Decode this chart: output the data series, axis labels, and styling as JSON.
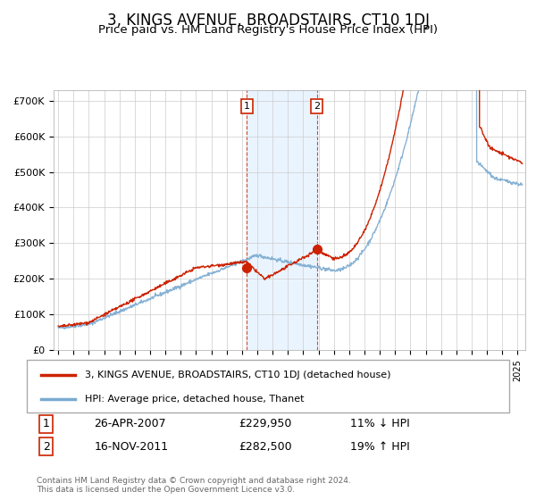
{
  "title": "3, KINGS AVENUE, BROADSTAIRS, CT10 1DJ",
  "subtitle": "Price paid vs. HM Land Registry's House Price Index (HPI)",
  "title_fontsize": 12,
  "subtitle_fontsize": 9.5,
  "ylabel_ticks": [
    "£0",
    "£100K",
    "£200K",
    "£300K",
    "£400K",
    "£500K",
    "£600K",
    "£700K"
  ],
  "ytick_values": [
    0,
    100000,
    200000,
    300000,
    400000,
    500000,
    600000,
    700000
  ],
  "ylim": [
    0,
    730000
  ],
  "xlim_start": 1994.7,
  "xlim_end": 2025.5,
  "hpi_color": "#7aaad0",
  "price_color": "#cc2200",
  "marker_color": "#cc2200",
  "transaction1": {
    "date": "26-APR-2007",
    "price": 229950,
    "label": "1",
    "pct": "11% ↓ HPI",
    "x": 2007.32
  },
  "transaction2": {
    "date": "16-NOV-2011",
    "price": 282500,
    "label": "2",
    "pct": "19% ↑ HPI",
    "x": 2011.88
  },
  "legend_line1": "3, KINGS AVENUE, BROADSTAIRS, CT10 1DJ (detached house)",
  "legend_line2": "HPI: Average price, detached house, Thanet",
  "table_rows": [
    [
      "1",
      "26-APR-2007",
      "£229,950",
      "11% ↓ HPI"
    ],
    [
      "2",
      "16-NOV-2011",
      "£282,500",
      "19% ↑ HPI"
    ]
  ],
  "footer": "Contains HM Land Registry data © Crown copyright and database right 2024.\nThis data is licensed under the Open Government Licence v3.0.",
  "background_color": "#ffffff",
  "plot_bg_color": "#ffffff",
  "grid_color": "#cccccc",
  "shade_color": "#ddeeff"
}
